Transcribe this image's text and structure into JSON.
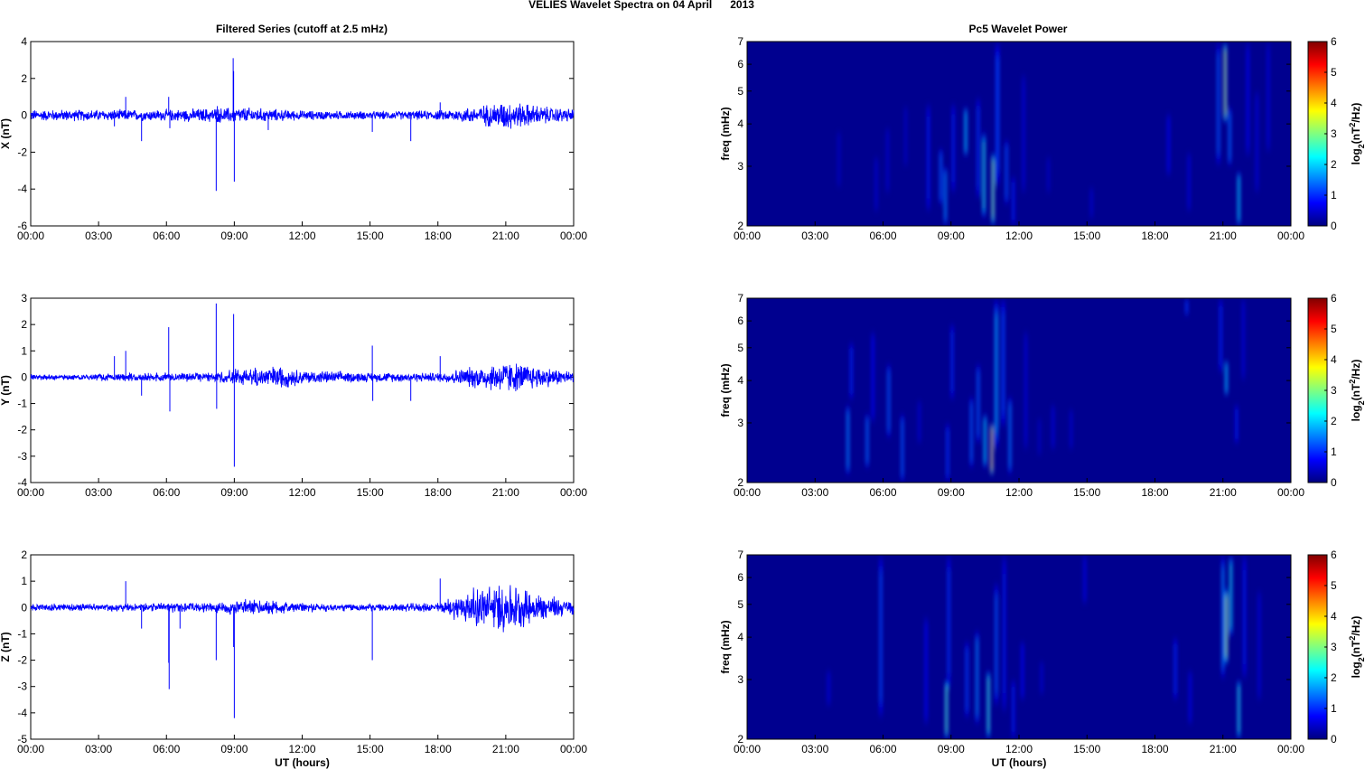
{
  "figure": {
    "title": "VELIES Wavelet Spectra on 04 April      2013",
    "left_title": "Filtered Series (cutoff at 2.5 mHz)",
    "right_title": "Pc5 Wavelet Power",
    "xlabel": "UT (hours)",
    "time_ticks": [
      "00:00",
      "03:00",
      "06:00",
      "09:00",
      "12:00",
      "15:00",
      "18:00",
      "21:00",
      "00:00"
    ],
    "series_color": "#0000ff",
    "freq_label": "freq (mHz)",
    "colorbar_label": "log2(nT^2/Hz)",
    "colormap": "jet",
    "spectrogram_background": "#00008f"
  },
  "chart_data": [
    {
      "type": "line",
      "title": "Filtered Series (cutoff at 2.5 mHz)",
      "xlabel": "",
      "ylabel": "X (nT)",
      "xlim": [
        0,
        24
      ],
      "ylim": [
        -6,
        4
      ],
      "yticks": [
        "-6",
        "-4",
        "-2",
        "0",
        "2",
        "4"
      ],
      "noise_envelope": [
        [
          0,
          0.35
        ],
        [
          3.5,
          0.35
        ],
        [
          6,
          0.35
        ],
        [
          8,
          0.45
        ],
        [
          9.5,
          0.5
        ],
        [
          10.5,
          0.4
        ],
        [
          12,
          0.3
        ],
        [
          15,
          0.25
        ],
        [
          18,
          0.3
        ],
        [
          19.5,
          0.5
        ],
        [
          21,
          0.9
        ],
        [
          23,
          0.5
        ],
        [
          24,
          0.4
        ]
      ],
      "spikes": [
        [
          3.7,
          -0.6
        ],
        [
          4.2,
          1.0
        ],
        [
          4.9,
          -1.4
        ],
        [
          6.1,
          1.0
        ],
        [
          6.15,
          -0.7
        ],
        [
          8.2,
          -4.1
        ],
        [
          8.25,
          0.5
        ],
        [
          8.95,
          3.1
        ],
        [
          8.97,
          2.4
        ],
        [
          9.0,
          -3.6
        ],
        [
          10.5,
          -0.8
        ],
        [
          15.1,
          -0.9
        ],
        [
          16.8,
          -1.4
        ],
        [
          18.1,
          0.7
        ]
      ]
    },
    {
      "type": "line",
      "xlabel": "",
      "ylabel": "Y (nT)",
      "xlim": [
        0,
        24
      ],
      "ylim": [
        -4,
        3
      ],
      "yticks": [
        "-4",
        "-3",
        "-2",
        "-1",
        "0",
        "1",
        "2",
        "3"
      ],
      "noise_envelope": [
        [
          0,
          0.12
        ],
        [
          3.5,
          0.15
        ],
        [
          6,
          0.2
        ],
        [
          8,
          0.2
        ],
        [
          9.5,
          0.4
        ],
        [
          11,
          0.5
        ],
        [
          12,
          0.3
        ],
        [
          15,
          0.2
        ],
        [
          18,
          0.2
        ],
        [
          19.5,
          0.45
        ],
        [
          21,
          0.7
        ],
        [
          23,
          0.4
        ],
        [
          24,
          0.25
        ]
      ],
      "spikes": [
        [
          3.7,
          0.8
        ],
        [
          4.2,
          1.0
        ],
        [
          4.9,
          -0.7
        ],
        [
          6.1,
          1.9
        ],
        [
          6.15,
          -1.3
        ],
        [
          8.2,
          2.8
        ],
        [
          8.22,
          -1.2
        ],
        [
          8.97,
          2.4
        ],
        [
          9.0,
          -3.4
        ],
        [
          15.1,
          1.2
        ],
        [
          15.12,
          -0.9
        ],
        [
          16.8,
          -0.9
        ],
        [
          18.1,
          0.8
        ]
      ]
    },
    {
      "type": "line",
      "xlabel": "UT (hours)",
      "ylabel": "Z (nT)",
      "xlim": [
        0,
        24
      ],
      "ylim": [
        -5,
        2
      ],
      "yticks": [
        "-5",
        "-4",
        "-3",
        "-2",
        "-1",
        "0",
        "1",
        "2"
      ],
      "noise_envelope": [
        [
          0,
          0.15
        ],
        [
          3.5,
          0.15
        ],
        [
          6,
          0.2
        ],
        [
          8,
          0.2
        ],
        [
          9.5,
          0.35
        ],
        [
          11,
          0.3
        ],
        [
          12,
          0.2
        ],
        [
          15,
          0.15
        ],
        [
          18,
          0.2
        ],
        [
          19.5,
          0.8
        ],
        [
          21,
          1.1
        ],
        [
          22.5,
          0.6
        ],
        [
          24,
          0.3
        ]
      ],
      "spikes": [
        [
          4.2,
          1.0
        ],
        [
          4.9,
          -0.8
        ],
        [
          6.1,
          -2.1
        ],
        [
          6.12,
          -3.1
        ],
        [
          6.6,
          -0.8
        ],
        [
          8.2,
          -2.0
        ],
        [
          8.97,
          -1.5
        ],
        [
          9.0,
          -4.2
        ],
        [
          15.1,
          -2.0
        ],
        [
          18.1,
          1.1
        ]
      ]
    },
    {
      "type": "heatmap",
      "title": "Pc5 Wavelet Power",
      "xlabel": "",
      "ylabel": "freq (mHz)",
      "yscale": "log",
      "xlim": [
        0,
        24
      ],
      "ylim": [
        2,
        7
      ],
      "yticks": [
        "2",
        "3",
        "4",
        "5",
        "6",
        "7"
      ],
      "clim": [
        0,
        6
      ],
      "colorbar_ticks": [
        "0",
        "1",
        "2",
        "3",
        "4",
        "5",
        "6"
      ],
      "colorbar_label": "log2(nT^2/Hz)",
      "blobs": [
        [
          8.0,
          2.2,
          4.6,
          1.0,
          3.3
        ],
        [
          8.55,
          2.3,
          3.4,
          1.5,
          2.5
        ],
        [
          8.75,
          2.0,
          3.0,
          1.8,
          2.0
        ],
        [
          9.1,
          2.5,
          4.6,
          1.0,
          3.0
        ],
        [
          9.65,
          3.2,
          4.5,
          2.2,
          1.9
        ],
        [
          10.2,
          2.4,
          4.8,
          1.2,
          3.2
        ],
        [
          10.45,
          2.1,
          3.8,
          2.6,
          2.0
        ],
        [
          10.85,
          2.0,
          3.3,
          3.4,
          2.4
        ],
        [
          11.05,
          2.6,
          7.0,
          1.3,
          4.6
        ],
        [
          11.45,
          2.3,
          3.6,
          1.4,
          2.0
        ],
        [
          11.75,
          2.0,
          2.8,
          1.0,
          1.6
        ],
        [
          12.2,
          2.5,
          5.6,
          0.6,
          2.5
        ],
        [
          4.05,
          2.6,
          3.8,
          0.4,
          1.1
        ],
        [
          5.7,
          2.2,
          3.2,
          0.5,
          1.2
        ],
        [
          6.2,
          2.5,
          3.9,
          0.5,
          1.3
        ],
        [
          7.0,
          3.0,
          4.5,
          0.4,
          1.2
        ],
        [
          13.3,
          2.5,
          3.2,
          0.4,
          1.2
        ],
        [
          15.2,
          2.1,
          2.6,
          0.5,
          1.2
        ],
        [
          18.6,
          2.8,
          4.3,
          0.8,
          1.6
        ],
        [
          19.5,
          2.2,
          3.3,
          0.6,
          1.3
        ],
        [
          20.8,
          3.0,
          7.0,
          1.5,
          3.0
        ],
        [
          21.1,
          4.0,
          7.0,
          3.8,
          2.0
        ],
        [
          21.3,
          3.0,
          4.5,
          1.6,
          2.0
        ],
        [
          21.7,
          2.0,
          2.9,
          2.4,
          2.0
        ],
        [
          22.1,
          3.2,
          7.0,
          0.8,
          2.5
        ],
        [
          22.5,
          2.5,
          5.0,
          0.6,
          2.2
        ],
        [
          23.0,
          3.3,
          7.0,
          0.6,
          2.5
        ]
      ]
    },
    {
      "type": "heatmap",
      "xlabel": "",
      "ylabel": "freq (mHz)",
      "yscale": "log",
      "xlim": [
        0,
        24
      ],
      "ylim": [
        2,
        7
      ],
      "yticks": [
        "2",
        "3",
        "4",
        "5",
        "6",
        "7"
      ],
      "clim": [
        0,
        6
      ],
      "colorbar_ticks": [
        "0",
        "1",
        "2",
        "3",
        "4",
        "5",
        "6"
      ],
      "colorbar_label": "log2(nT^2/Hz)",
      "blobs": [
        [
          4.45,
          2.1,
          3.4,
          1.8,
          2.0
        ],
        [
          4.6,
          3.5,
          5.2,
          1.1,
          2.0
        ],
        [
          5.3,
          2.2,
          3.2,
          1.6,
          2.0
        ],
        [
          5.55,
          3.0,
          5.6,
          0.9,
          2.2
        ],
        [
          6.25,
          2.7,
          4.5,
          1.5,
          2.2
        ],
        [
          6.85,
          2.0,
          3.2,
          1.5,
          1.8
        ],
        [
          7.6,
          2.6,
          3.5,
          0.5,
          1.2
        ],
        [
          8.85,
          2.0,
          3.0,
          1.2,
          1.8
        ],
        [
          9.05,
          3.5,
          5.9,
          1.1,
          2.5
        ],
        [
          9.9,
          2.2,
          3.6,
          1.5,
          2.0
        ],
        [
          10.2,
          2.6,
          4.5,
          1.5,
          2.2
        ],
        [
          10.5,
          2.2,
          3.2,
          2.3,
          2.2
        ],
        [
          10.8,
          2.1,
          3.0,
          4.8,
          2.4
        ],
        [
          11.0,
          2.5,
          7.0,
          2.0,
          4.0
        ],
        [
          11.3,
          2.9,
          7.0,
          1.3,
          4.0
        ],
        [
          11.6,
          2.1,
          3.6,
          1.7,
          2.2
        ],
        [
          12.3,
          2.5,
          5.6,
          0.6,
          2.0
        ],
        [
          12.9,
          2.4,
          3.1,
          0.4,
          1.2
        ],
        [
          13.5,
          2.5,
          3.4,
          0.6,
          1.4
        ],
        [
          14.3,
          2.5,
          3.3,
          0.5,
          1.2
        ],
        [
          19.4,
          6.2,
          7.0,
          1.2,
          1.6
        ],
        [
          20.9,
          4.2,
          7.0,
          1.1,
          2.0
        ],
        [
          21.15,
          3.6,
          4.6,
          2.2,
          2.0
        ],
        [
          21.6,
          2.6,
          3.4,
          1.0,
          1.8
        ],
        [
          21.9,
          4.0,
          7.0,
          0.6,
          2.0
        ]
      ]
    },
    {
      "type": "heatmap",
      "xlabel": "UT (hours)",
      "ylabel": "freq (mHz)",
      "yscale": "log",
      "xlim": [
        0,
        24
      ],
      "ylim": [
        2,
        7
      ],
      "yticks": [
        "2",
        "3",
        "4",
        "5",
        "6",
        "7"
      ],
      "clim": [
        0,
        6
      ],
      "colorbar_ticks": [
        "0",
        "1",
        "2",
        "3",
        "4",
        "5",
        "6"
      ],
      "colorbar_label": "log2(nT^2/Hz)",
      "blobs": [
        [
          3.6,
          2.5,
          3.2,
          0.6,
          1.2
        ],
        [
          5.9,
          2.3,
          7.0,
          1.4,
          3.0
        ],
        [
          7.9,
          2.2,
          4.6,
          0.9,
          2.5
        ],
        [
          8.8,
          2.0,
          3.0,
          3.0,
          2.6
        ],
        [
          8.9,
          2.8,
          7.0,
          1.2,
          3.0
        ],
        [
          9.7,
          2.3,
          3.9,
          1.3,
          2.2
        ],
        [
          10.15,
          2.2,
          4.2,
          1.8,
          2.4
        ],
        [
          10.65,
          2.0,
          3.2,
          2.8,
          2.8
        ],
        [
          11.0,
          2.5,
          5.8,
          1.5,
          3.2
        ],
        [
          11.35,
          2.4,
          7.0,
          1.0,
          3.0
        ],
        [
          11.75,
          2.0,
          3.0,
          1.0,
          1.6
        ],
        [
          12.15,
          2.6,
          3.9,
          0.9,
          1.8
        ],
        [
          13.0,
          2.7,
          3.4,
          0.5,
          1.2
        ],
        [
          14.9,
          5.0,
          7.0,
          0.7,
          1.5
        ],
        [
          18.9,
          2.6,
          4.0,
          1.1,
          2.0
        ],
        [
          19.55,
          2.2,
          3.2,
          0.7,
          1.4
        ],
        [
          21.0,
          3.0,
          7.0,
          1.8,
          3.0
        ],
        [
          21.15,
          3.3,
          5.6,
          3.6,
          2.0
        ],
        [
          21.35,
          4.0,
          7.0,
          2.5,
          2.0
        ],
        [
          21.7,
          2.0,
          3.0,
          2.6,
          2.2
        ],
        [
          21.95,
          3.0,
          7.0,
          1.0,
          2.6
        ],
        [
          22.6,
          2.6,
          5.5,
          0.6,
          2.2
        ]
      ]
    }
  ]
}
